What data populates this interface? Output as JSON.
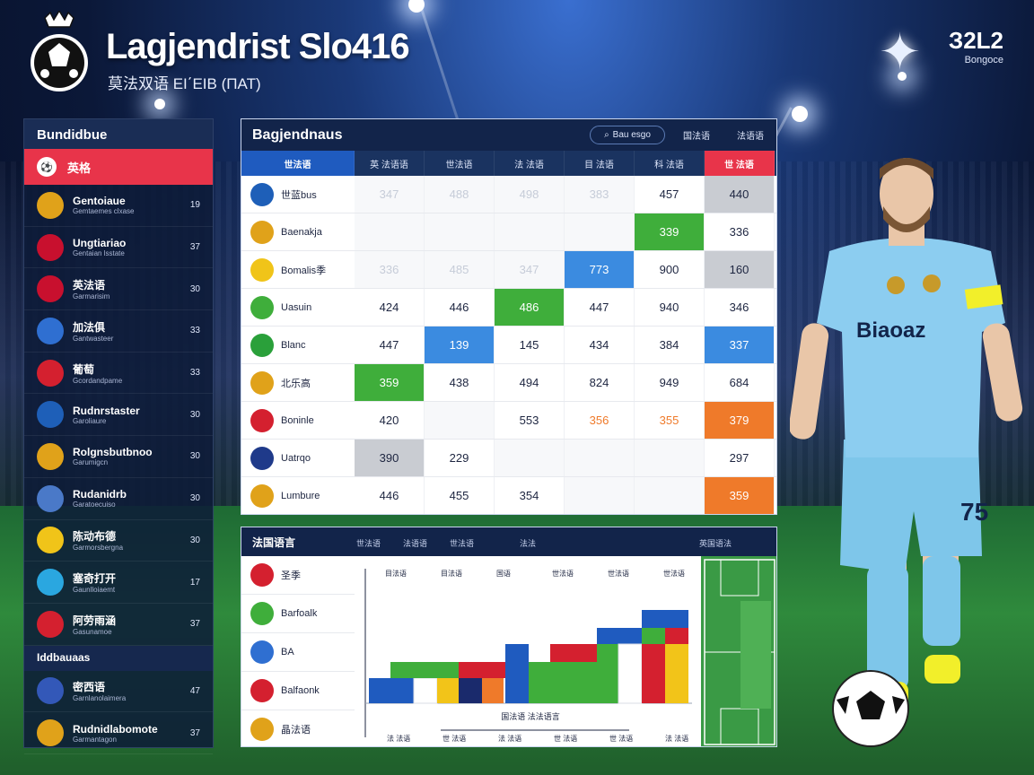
{
  "header": {
    "title": "Lagjendrist Slo416",
    "subtitle": "莫法双语 ΕΙ΄ΕΙΒ (ΠΑΤ)",
    "brand": "З2L2",
    "brand_sub": "Bongoce"
  },
  "sidebar": {
    "title": "Bundidbue",
    "active_item": "英格",
    "items": [
      {
        "name": "Gentoiaue",
        "sub": "Gemtaemes clxase",
        "value": "19",
        "badge_color": "#e0a21a",
        "icon": "shield-icon"
      },
      {
        "name": "Ungtiariao",
        "sub": "Gentaian lsstate",
        "value": "37",
        "badge_color": "#c8102e",
        "icon": "flag-uk-icon"
      },
      {
        "name": "英法语",
        "sub": "Garmarisim",
        "value": "30",
        "badge_color": "#c8102e",
        "icon": "flag-uk-icon"
      },
      {
        "name": "加法俱",
        "sub": "Gantwasteer",
        "value": "33",
        "badge_color": "#2f6fd1",
        "icon": "swirl-icon"
      },
      {
        "name": "葡萄",
        "sub": "Gcordandpame",
        "value": "33",
        "badge_color": "#d4202f",
        "icon": "cross-icon"
      },
      {
        "name": "Rudnrstaster",
        "sub": "Garoliaure",
        "value": "30",
        "badge_color": "#1e5fb8",
        "icon": "ball-icon"
      },
      {
        "name": "Rolgnsbutbnoo",
        "sub": "Garumigcn",
        "value": "30",
        "badge_color": "#e0a21a",
        "icon": "shield-icon"
      },
      {
        "name": "Rudanidrb",
        "sub": "Garatoecuiso",
        "value": "30",
        "badge_color": "#4a79c8",
        "icon": "flag-uy-icon"
      },
      {
        "name": "陈动布德",
        "sub": "Garmorsbergna",
        "value": "30",
        "badge_color": "#f0c419",
        "icon": "flag-co-icon"
      },
      {
        "name": "塞奇打开",
        "sub": "Gaunlloiaemt",
        "value": "17",
        "badge_color": "#2aa7e0",
        "icon": "u-icon"
      },
      {
        "name": "阿劳雨涵",
        "sub": "Gasunamoe",
        "value": "37",
        "badge_color": "#d4202f",
        "icon": "flag-es-icon"
      }
    ],
    "section": "Iddbauaas",
    "items2": [
      {
        "name": "密西语",
        "sub": "Garnlanolaimera",
        "value": "47",
        "badge_color": "#3358b8",
        "icon": "stripes-icon"
      },
      {
        "name": "Rudnidlabomote",
        "sub": "Garmantagon",
        "value": "37",
        "badge_color": "#e0a21a",
        "icon": "crest-icon"
      }
    ]
  },
  "main_table": {
    "title": "Bagjendnaus",
    "search_label": "Bau esgo",
    "btn1": "国法语",
    "btn2": "法语语",
    "columns": [
      "世法语",
      "英 法语语",
      "世法语",
      "法 法语",
      "目 法语",
      "科 法语",
      "世 法语"
    ],
    "rows": [
      {
        "team": "世蓝bus",
        "badge_color": "#1e5fb8",
        "icon": "ball-icon",
        "cells": [
          "347",
          "488",
          "498",
          "383",
          "457",
          "440"
        ],
        "styles": [
          "faint",
          "faint",
          "faint",
          "faint",
          "",
          "gray"
        ]
      },
      {
        "team": "Baenakja",
        "badge_color": "#e0a21a",
        "icon": "shield-icon",
        "cells": [
          "",
          "",
          "",
          "",
          "339",
          "336"
        ],
        "styles": [
          "faint",
          "faint",
          "faint",
          "faint",
          "green",
          ""
        ]
      },
      {
        "team": "Bomalis季",
        "badge_color": "#f0c419",
        "icon": "flag-ro-icon",
        "cells": [
          "336",
          "485",
          "347",
          "773",
          "900",
          "160"
        ],
        "styles": [
          "faint",
          "faint",
          "faint",
          "blue",
          "",
          "gray"
        ]
      },
      {
        "team": "Uasuin",
        "badge_color": "#3fae3b",
        "icon": "flag-it-icon",
        "cells": [
          "424",
          "446",
          "486",
          "447",
          "940",
          "346"
        ],
        "styles": [
          "",
          "",
          "green",
          "",
          "",
          ""
        ]
      },
      {
        "team": "Blanc",
        "badge_color": "#2aa03a",
        "icon": "circle-icon",
        "cells": [
          "447",
          "139",
          "145",
          "434",
          "384",
          "337"
        ],
        "styles": [
          "",
          "blue",
          "",
          "",
          "",
          "blue"
        ]
      },
      {
        "team": "北乐高",
        "badge_color": "#e0a21a",
        "icon": "shield-icon",
        "cells": [
          "359",
          "438",
          "494",
          "824",
          "949",
          "684"
        ],
        "styles": [
          "green",
          "",
          "",
          "",
          "",
          ""
        ]
      },
      {
        "team": "Boninle",
        "badge_color": "#d4202f",
        "icon": "flag-cr-icon",
        "cells": [
          "420",
          "",
          "553",
          "356",
          "355",
          "379"
        ],
        "styles": [
          "",
          "faint",
          "",
          "orange-text",
          "orange-text",
          "orange"
        ]
      },
      {
        "team": "Uatrqo",
        "badge_color": "#1f3a8a",
        "icon": "flag-uk-icon",
        "cells": [
          "390",
          "229",
          "",
          "",
          "",
          "297"
        ],
        "styles": [
          "gray",
          "",
          "faint",
          "faint",
          "faint",
          ""
        ]
      },
      {
        "team": "Lumbure",
        "badge_color": "#e0a21a",
        "icon": "crest-icon",
        "cells": [
          "446",
          "455",
          "354",
          "",
          "",
          "359"
        ],
        "styles": [
          "",
          "",
          "",
          "faint",
          "faint",
          "orange"
        ]
      }
    ]
  },
  "bottom": {
    "title": "法国语言",
    "tabs": [
      "世法语",
      "法语语",
      "世法语",
      "法法",
      "英国语法"
    ],
    "teams": [
      {
        "name": "圣季",
        "badge_color": "#d4202f",
        "icon": "shield-icon"
      },
      {
        "name": "Barfoalk",
        "badge_color": "#3fae3b",
        "icon": "flag-it-icon"
      },
      {
        "name": "BA",
        "badge_color": "#2f6fd1",
        "icon": "flag-fr-icon"
      },
      {
        "name": "Balfaonk",
        "badge_color": "#d4202f",
        "icon": "flag-nl-icon"
      },
      {
        "name": "晶法语",
        "badge_color": "#e0a21a",
        "icon": "crest-icon"
      }
    ],
    "chart_labels": [
      "目法语",
      "目法语",
      "国语",
      "世法语",
      "世法语",
      "世法语"
    ],
    "axis_label": "国法语 法法语言",
    "footer_labels": [
      "法 法语",
      "世 法语",
      "法 法语",
      "世 法语",
      "世 法语",
      "法 法语"
    ]
  }
}
